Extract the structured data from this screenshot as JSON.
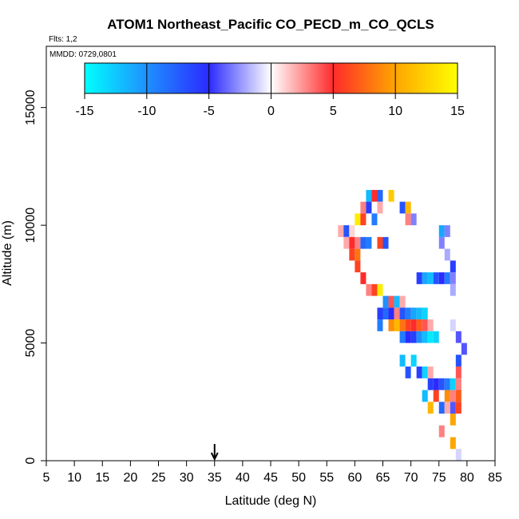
{
  "chart_data": {
    "type": "heatmap",
    "title": "ATOM1 Northeast_Pacific CO_PECD_m_CO_QCLS",
    "flights_label": "Flts: 1,2",
    "mmdd_label": "MMDD: 0729,0801",
    "xlabel": "Latitude (deg N)",
    "ylabel": "Altitude (m)",
    "xlim": [
      5,
      85
    ],
    "ylim": [
      0,
      17600
    ],
    "xticks": [
      5,
      10,
      15,
      20,
      25,
      30,
      35,
      40,
      45,
      50,
      55,
      60,
      65,
      70,
      75,
      80,
      85
    ],
    "yticks": [
      0,
      5000,
      10000,
      15000
    ],
    "colorbar": {
      "min": -15,
      "max": 15,
      "ticks": [
        -15,
        -10,
        -5,
        0,
        5,
        10,
        15
      ],
      "stops": [
        {
          "v": -15,
          "color": "#00ffff"
        },
        {
          "v": -10,
          "color": "#1e90ff"
        },
        {
          "v": -5,
          "color": "#2b2bff"
        },
        {
          "v": 0,
          "color": "#ffffff"
        },
        {
          "v": 5,
          "color": "#ff2b2b"
        },
        {
          "v": 10,
          "color": "#ffa500"
        },
        {
          "v": 15,
          "color": "#ffff00"
        }
      ]
    },
    "marker": {
      "lat": 35
    },
    "cell_size": {
      "lat": 1,
      "alt": 500
    },
    "cells": [
      [
        62.5,
        11250,
        -12
      ],
      [
        63.5,
        11250,
        5
      ],
      [
        64.5,
        11250,
        -8
      ],
      [
        66.5,
        11250,
        12
      ],
      [
        61.5,
        10750,
        3
      ],
      [
        62.5,
        10750,
        -6
      ],
      [
        64.5,
        10750,
        2
      ],
      [
        68.5,
        10750,
        -7
      ],
      [
        69.5,
        10750,
        11
      ],
      [
        60.5,
        10250,
        14
      ],
      [
        61.5,
        10250,
        6
      ],
      [
        63.5,
        10250,
        -9
      ],
      [
        69.5,
        10250,
        3
      ],
      [
        70.5,
        10250,
        -3
      ],
      [
        57.5,
        9750,
        2
      ],
      [
        58.5,
        9750,
        -7
      ],
      [
        59.5,
        9750,
        1
      ],
      [
        75.5,
        9750,
        -11
      ],
      [
        76.5,
        9750,
        -3
      ],
      [
        58.5,
        9250,
        2
      ],
      [
        59.5,
        9250,
        5
      ],
      [
        60.5,
        9250,
        3
      ],
      [
        61.5,
        9250,
        -8
      ],
      [
        62.5,
        9250,
        -9
      ],
      [
        64.5,
        9250,
        6
      ],
      [
        65.5,
        9250,
        -7
      ],
      [
        75.5,
        9250,
        -3
      ],
      [
        59.5,
        8750,
        6
      ],
      [
        60.5,
        8750,
        8
      ],
      [
        76.5,
        8750,
        -2
      ],
      [
        60.5,
        8250,
        6
      ],
      [
        77.5,
        8250,
        -6
      ],
      [
        61.5,
        7750,
        5
      ],
      [
        71.5,
        7750,
        -6
      ],
      [
        72.5,
        7750,
        -11
      ],
      [
        73.5,
        7750,
        -12
      ],
      [
        74.5,
        7750,
        -7
      ],
      [
        75.5,
        7750,
        -5
      ],
      [
        76.5,
        7750,
        -9
      ],
      [
        77.5,
        7750,
        -3
      ],
      [
        62.5,
        7250,
        3
      ],
      [
        63.5,
        7250,
        6
      ],
      [
        64.5,
        7250,
        14
      ],
      [
        77.5,
        7250,
        -2
      ],
      [
        65.5,
        6750,
        -10
      ],
      [
        66.5,
        6750,
        4
      ],
      [
        67.5,
        6750,
        -12
      ],
      [
        68.5,
        6750,
        2
      ],
      [
        64.5,
        6250,
        -6
      ],
      [
        65.5,
        6250,
        -8
      ],
      [
        66.5,
        6250,
        -5
      ],
      [
        67.5,
        6250,
        3
      ],
      [
        68.5,
        6250,
        -7
      ],
      [
        69.5,
        6250,
        -9
      ],
      [
        70.5,
        6250,
        -11
      ],
      [
        71.5,
        6250,
        -12
      ],
      [
        72.5,
        6250,
        -13
      ],
      [
        64.5,
        5750,
        -9
      ],
      [
        66.5,
        5750,
        9
      ],
      [
        67.5,
        5750,
        11
      ],
      [
        68.5,
        5750,
        8
      ],
      [
        69.5,
        5750,
        6
      ],
      [
        70.5,
        5750,
        5
      ],
      [
        71.5,
        5750,
        7
      ],
      [
        72.5,
        5750,
        4
      ],
      [
        73.5,
        5750,
        2
      ],
      [
        77.5,
        5750,
        -1
      ],
      [
        68.5,
        5250,
        -9
      ],
      [
        69.5,
        5250,
        -5
      ],
      [
        70.5,
        5250,
        -6
      ],
      [
        71.5,
        5250,
        -10
      ],
      [
        72.5,
        5250,
        -12
      ],
      [
        73.5,
        5250,
        -14
      ],
      [
        74.5,
        5250,
        -13
      ],
      [
        78.5,
        5250,
        -4
      ],
      [
        79.5,
        4750,
        -4
      ],
      [
        68.5,
        4250,
        -12
      ],
      [
        70.5,
        4250,
        -13
      ],
      [
        78.5,
        4250,
        -7
      ],
      [
        69.5,
        3750,
        -7
      ],
      [
        71.5,
        3750,
        -6
      ],
      [
        72.5,
        3750,
        -13
      ],
      [
        73.5,
        3750,
        2
      ],
      [
        78.5,
        3750,
        4
      ],
      [
        73.5,
        3250,
        -6
      ],
      [
        74.5,
        3250,
        -5
      ],
      [
        75.5,
        3250,
        -7
      ],
      [
        76.5,
        3250,
        -9
      ],
      [
        77.5,
        3250,
        -13
      ],
      [
        78.5,
        3250,
        3
      ],
      [
        72.5,
        2750,
        -12
      ],
      [
        74.5,
        2750,
        6
      ],
      [
        76.5,
        2750,
        9
      ],
      [
        77.5,
        2750,
        3
      ],
      [
        78.5,
        2750,
        7
      ],
      [
        73.5,
        2250,
        11
      ],
      [
        75.5,
        2250,
        -8
      ],
      [
        76.5,
        2250,
        2
      ],
      [
        77.5,
        2250,
        -4
      ],
      [
        78.5,
        2250,
        6
      ],
      [
        77.5,
        1750,
        10
      ],
      [
        75.5,
        1250,
        3
      ],
      [
        77.5,
        750,
        10
      ],
      [
        78.5,
        250,
        -1
      ]
    ]
  }
}
